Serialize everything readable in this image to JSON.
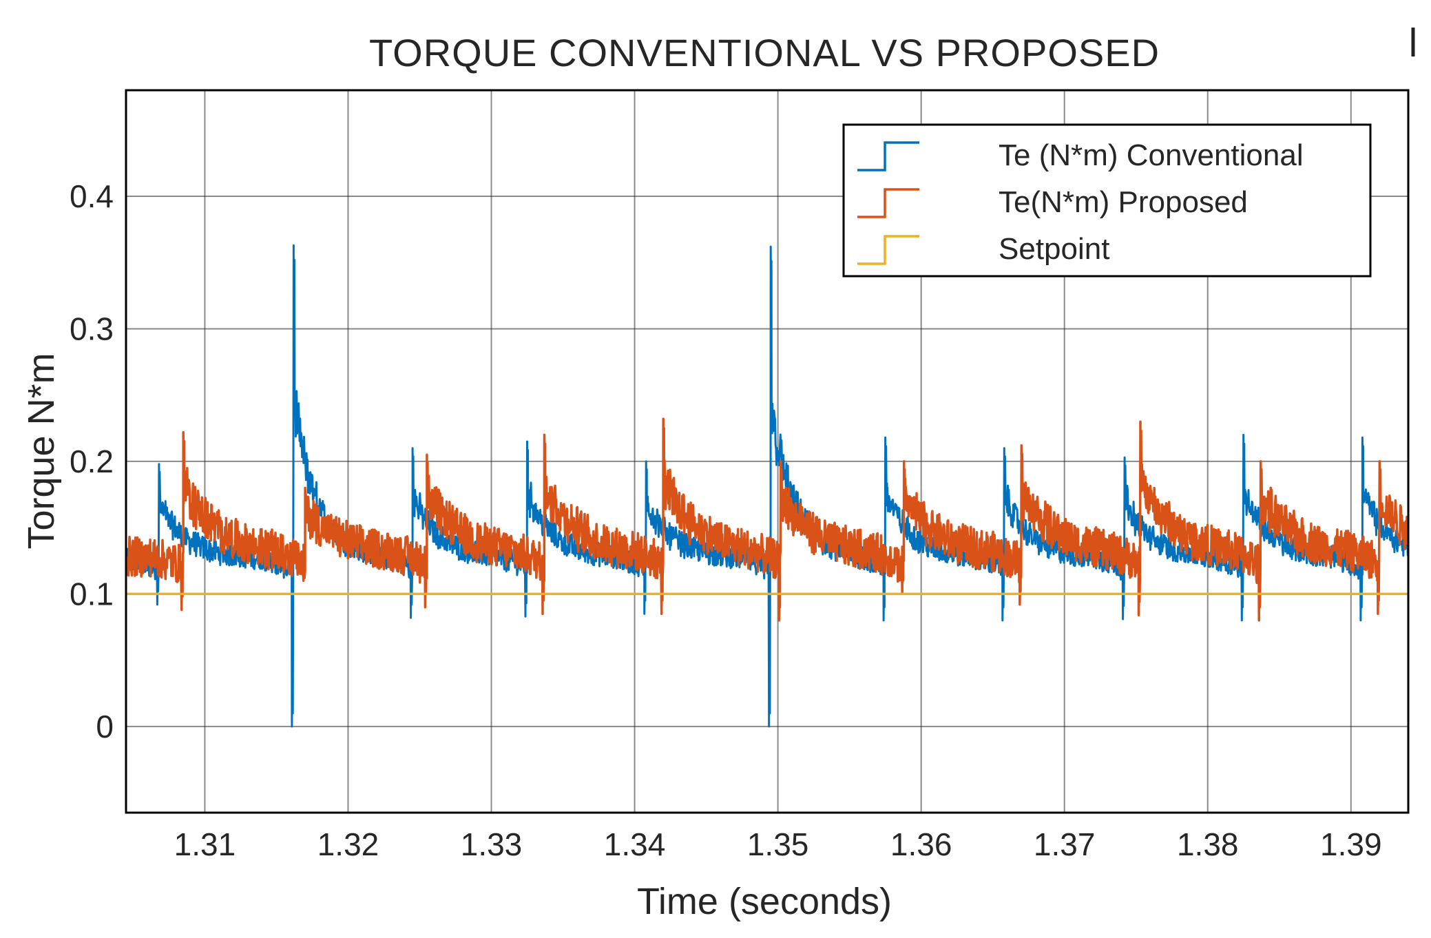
{
  "chart_data": {
    "type": "line",
    "title": "TORQUE CONVENTIONAL VS PROPOSED",
    "xlabel": "Time (seconds)",
    "ylabel": "Torque N*m",
    "xlim": [
      1.3045,
      1.394
    ],
    "ylim": [
      -0.065,
      0.48
    ],
    "x_ticks": [
      1.31,
      1.32,
      1.33,
      1.34,
      1.35,
      1.36,
      1.37,
      1.38,
      1.39
    ],
    "x_tick_labels": [
      "1.31",
      "1.32",
      "1.33",
      "1.34",
      "1.35",
      "1.36",
      "1.37",
      "1.38",
      "1.39"
    ],
    "y_ticks": [
      0,
      0.1,
      0.2,
      0.3,
      0.4
    ],
    "y_tick_labels": [
      "0",
      "0.1",
      "0.2",
      "0.3",
      "0.4"
    ],
    "grid": true,
    "legend_position": "top-right",
    "series": [
      {
        "name": "Te (N*m) Conventional",
        "color": "#0072BD",
        "baseline": 0.125,
        "spikes": [
          {
            "x": 1.3068,
            "peak": 0.198,
            "dip": 0.092
          },
          {
            "x": 1.3162,
            "peak": 0.363,
            "dip": 0.0
          },
          {
            "x": 1.3245,
            "peak": 0.21,
            "dip": 0.082
          },
          {
            "x": 1.3325,
            "peak": 0.215,
            "dip": 0.083
          },
          {
            "x": 1.3408,
            "peak": 0.2,
            "dip": 0.085
          },
          {
            "x": 1.3495,
            "peak": 0.362,
            "dip": 0.0
          },
          {
            "x": 1.3575,
            "peak": 0.218,
            "dip": 0.08
          },
          {
            "x": 1.3658,
            "peak": 0.21,
            "dip": 0.08
          },
          {
            "x": 1.3742,
            "peak": 0.203,
            "dip": 0.081
          },
          {
            "x": 1.3825,
            "peak": 0.22,
            "dip": 0.08
          },
          {
            "x": 1.3908,
            "peak": 0.218,
            "dip": 0.08
          }
        ]
      },
      {
        "name": "Te(N*m) Proposed",
        "color": "#D95319",
        "baseline": 0.128,
        "spikes": [
          {
            "x": 1.3085,
            "peak": 0.222,
            "dip": 0.088
          },
          {
            "x": 1.317,
            "peak": 0.18,
            "dip": 0.11
          },
          {
            "x": 1.3255,
            "peak": 0.205,
            "dip": 0.09
          },
          {
            "x": 1.3337,
            "peak": 0.22,
            "dip": 0.085
          },
          {
            "x": 1.342,
            "peak": 0.232,
            "dip": 0.085
          },
          {
            "x": 1.3502,
            "peak": 0.2,
            "dip": 0.08
          },
          {
            "x": 1.3588,
            "peak": 0.2,
            "dip": 0.1
          },
          {
            "x": 1.367,
            "peak": 0.212,
            "dip": 0.092
          },
          {
            "x": 1.3753,
            "peak": 0.23,
            "dip": 0.084
          },
          {
            "x": 1.3837,
            "peak": 0.2,
            "dip": 0.08
          },
          {
            "x": 1.392,
            "peak": 0.2,
            "dip": 0.085
          }
        ]
      },
      {
        "name": "Setpoint",
        "color": "#EDB120",
        "x": [
          1.3045,
          1.394
        ],
        "values": [
          0.1,
          0.1
        ]
      }
    ]
  }
}
